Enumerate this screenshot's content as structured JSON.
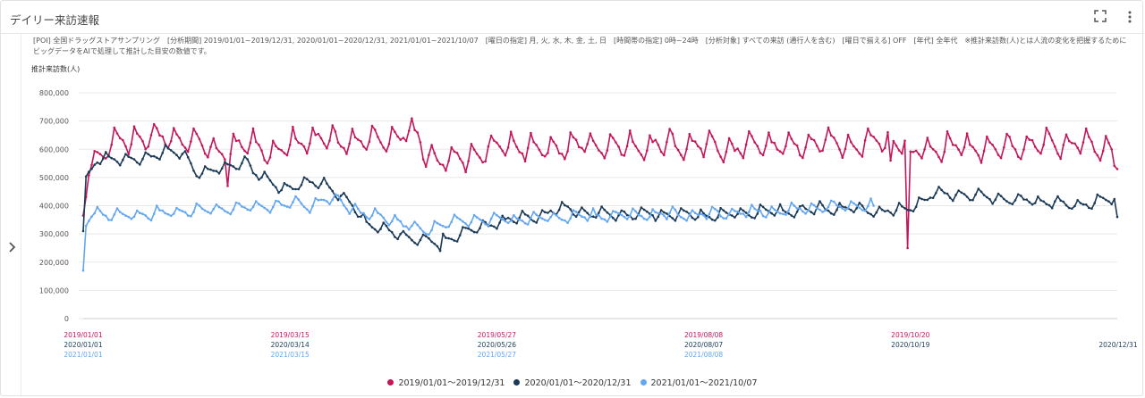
{
  "header": {
    "title": "デイリー来訪速報"
  },
  "icons": {
    "fullscreen": "fullscreen-icon",
    "more": "more-vert-icon",
    "expand": "chevron-right-icon"
  },
  "description": "[POI] 全国ドラッグストアサンプリング　[分析期間] 2019/01/01~2019/12/31, 2020/01/01~2020/12/31, 2021/01/01~2021/10/07　[曜日の指定] 月, 火, 水, 木, 金, 土, 日　[時間帯の指定] 0時~24時　[分析対象] すべての来訪 (通行人を含む)　[曜日で揃える] OFF　[年代] 全年代　※推計来訪数(人)とは人流の変化を把握するためにビッグデータをAIで処理して推計した目安の数値です。",
  "chart_data": {
    "type": "line",
    "ylabel": "推計来訪数(人)",
    "ylim": [
      0,
      800000
    ],
    "yticks": [
      0,
      100000,
      200000,
      300000,
      400000,
      500000,
      600000,
      700000,
      800000
    ],
    "ytick_labels": [
      "0",
      "100,000",
      "200,000",
      "300,000",
      "400,000",
      "500,000",
      "600,000",
      "700,000",
      "800,000"
    ],
    "xlim": [
      0,
      365
    ],
    "xticks": [
      {
        "day": 0,
        "labels": [
          "2019/01/01",
          "2020/01/01",
          "2021/01/01"
        ]
      },
      {
        "day": 73,
        "labels": [
          "2019/03/15",
          "2020/03/14",
          "2021/03/15"
        ]
      },
      {
        "day": 146,
        "labels": [
          "2019/05/27",
          "2020/05/26",
          "2021/05/27"
        ]
      },
      {
        "day": 219,
        "labels": [
          "2019/08/08",
          "2020/08/07",
          "2021/08/08"
        ]
      },
      {
        "day": 292,
        "labels": [
          "2019/10/20",
          "2020/10/19"
        ]
      },
      {
        "day": 365,
        "labels": [
          "2020/12/31"
        ]
      }
    ],
    "series": [
      {
        "name": "2019/01/01〜2019/12/31",
        "color": "#c2185b",
        "anchors": [
          [
            0,
            365000
          ],
          [
            2,
            555000
          ],
          [
            4,
            560000
          ],
          [
            10,
            620000
          ],
          [
            20,
            640000
          ],
          [
            35,
            640000
          ],
          [
            45,
            600000
          ],
          [
            50,
            590000
          ],
          [
            55,
            610000
          ],
          [
            60,
            620000
          ],
          [
            68,
            580000
          ],
          [
            73,
            620000
          ],
          [
            80,
            640000
          ],
          [
            90,
            630000
          ],
          [
            100,
            630000
          ],
          [
            110,
            640000
          ],
          [
            114,
            660000
          ],
          [
            118,
            640000
          ],
          [
            120,
            600000
          ],
          [
            125,
            560000
          ],
          [
            130,
            560000
          ],
          [
            140,
            590000
          ],
          [
            150,
            620000
          ],
          [
            160,
            600000
          ],
          [
            170,
            610000
          ],
          [
            180,
            620000
          ],
          [
            190,
            605000
          ],
          [
            200,
            610000
          ],
          [
            210,
            620000
          ],
          [
            220,
            610000
          ],
          [
            230,
            600000
          ],
          [
            240,
            620000
          ],
          [
            250,
            610000
          ],
          [
            260,
            630000
          ],
          [
            270,
            615000
          ],
          [
            280,
            630000
          ],
          [
            285,
            620000
          ],
          [
            290,
            640000
          ],
          [
            292,
            560000
          ],
          [
            294,
            600000
          ],
          [
            300,
            600000
          ],
          [
            310,
            610000
          ],
          [
            320,
            600000
          ],
          [
            330,
            610000
          ],
          [
            340,
            620000
          ],
          [
            350,
            620000
          ],
          [
            360,
            610000
          ],
          [
            363,
            600000
          ],
          [
            365,
            530000
          ]
        ],
        "amp": 45000,
        "ends": [
          [
            0,
            365000
          ],
          [
            365,
            530000
          ]
        ],
        "dips": [
          [
            51,
            470000
          ],
          [
            285,
            560000
          ],
          [
            291,
            250000
          ]
        ]
      },
      {
        "name": "2020/01/01〜2020/12/31",
        "color": "#1b3a57",
        "anchors": [
          [
            0,
            310000
          ],
          [
            1,
            490000
          ],
          [
            5,
            560000
          ],
          [
            10,
            570000
          ],
          [
            20,
            560000
          ],
          [
            25,
            580000
          ],
          [
            30,
            600000
          ],
          [
            35,
            580000
          ],
          [
            40,
            520000
          ],
          [
            50,
            530000
          ],
          [
            55,
            550000
          ],
          [
            58,
            560000
          ],
          [
            60,
            520000
          ],
          [
            63,
            500000
          ],
          [
            70,
            460000
          ],
          [
            80,
            480000
          ],
          [
            85,
            480000
          ],
          [
            90,
            440000
          ],
          [
            95,
            400000
          ],
          [
            100,
            340000
          ],
          [
            105,
            320000
          ],
          [
            110,
            300000
          ],
          [
            120,
            280000
          ],
          [
            125,
            270000
          ],
          [
            130,
            290000
          ],
          [
            135,
            310000
          ],
          [
            140,
            320000
          ],
          [
            145,
            340000
          ],
          [
            150,
            350000
          ],
          [
            160,
            360000
          ],
          [
            165,
            380000
          ],
          [
            170,
            390000
          ],
          [
            175,
            380000
          ],
          [
            180,
            370000
          ],
          [
            190,
            370000
          ],
          [
            200,
            370000
          ],
          [
            210,
            370000
          ],
          [
            220,
            365000
          ],
          [
            230,
            370000
          ],
          [
            240,
            380000
          ],
          [
            250,
            380000
          ],
          [
            260,
            390000
          ],
          [
            270,
            390000
          ],
          [
            280,
            380000
          ],
          [
            290,
            385000
          ],
          [
            295,
            410000
          ],
          [
            300,
            440000
          ],
          [
            310,
            440000
          ],
          [
            320,
            430000
          ],
          [
            330,
            420000
          ],
          [
            340,
            415000
          ],
          [
            350,
            400000
          ],
          [
            360,
            420000
          ],
          [
            364,
            420000
          ],
          [
            365,
            360000
          ]
        ],
        "amp": 20000,
        "ends": [
          [
            0,
            310000
          ],
          [
            365,
            360000
          ]
        ],
        "dips": [
          [
            126,
            240000
          ]
        ]
      },
      {
        "name": "2021/01/01〜2021/10/07",
        "color": "#64a7f0",
        "anchors": [
          [
            0,
            170000
          ],
          [
            1,
            330000
          ],
          [
            3,
            380000
          ],
          [
            10,
            365000
          ],
          [
            20,
            370000
          ],
          [
            30,
            375000
          ],
          [
            40,
            385000
          ],
          [
            50,
            390000
          ],
          [
            60,
            395000
          ],
          [
            70,
            400000
          ],
          [
            75,
            410000
          ],
          [
            80,
            400000
          ],
          [
            85,
            420000
          ],
          [
            90,
            420000
          ],
          [
            95,
            390000
          ],
          [
            100,
            370000
          ],
          [
            105,
            360000
          ],
          [
            110,
            350000
          ],
          [
            115,
            330000
          ],
          [
            120,
            310000
          ],
          [
            125,
            330000
          ],
          [
            130,
            340000
          ],
          [
            140,
            350000
          ],
          [
            150,
            350000
          ],
          [
            160,
            355000
          ],
          [
            170,
            360000
          ],
          [
            180,
            365000
          ],
          [
            190,
            365000
          ],
          [
            200,
            370000
          ],
          [
            210,
            370000
          ],
          [
            220,
            370000
          ],
          [
            230,
            375000
          ],
          [
            240,
            380000
          ],
          [
            250,
            385000
          ],
          [
            260,
            395000
          ],
          [
            270,
            400000
          ],
          [
            279,
            400000
          ]
        ],
        "amp": 20000,
        "ends": [
          [
            0,
            170000
          ],
          [
            279,
            400000
          ]
        ],
        "dips": []
      }
    ]
  },
  "legend": [
    {
      "label": "2019/01/01〜2019/12/31",
      "color": "#c2185b"
    },
    {
      "label": "2020/01/01〜2020/12/31",
      "color": "#1b3a57"
    },
    {
      "label": "2021/01/01〜2021/10/07",
      "color": "#64a7f0"
    }
  ]
}
